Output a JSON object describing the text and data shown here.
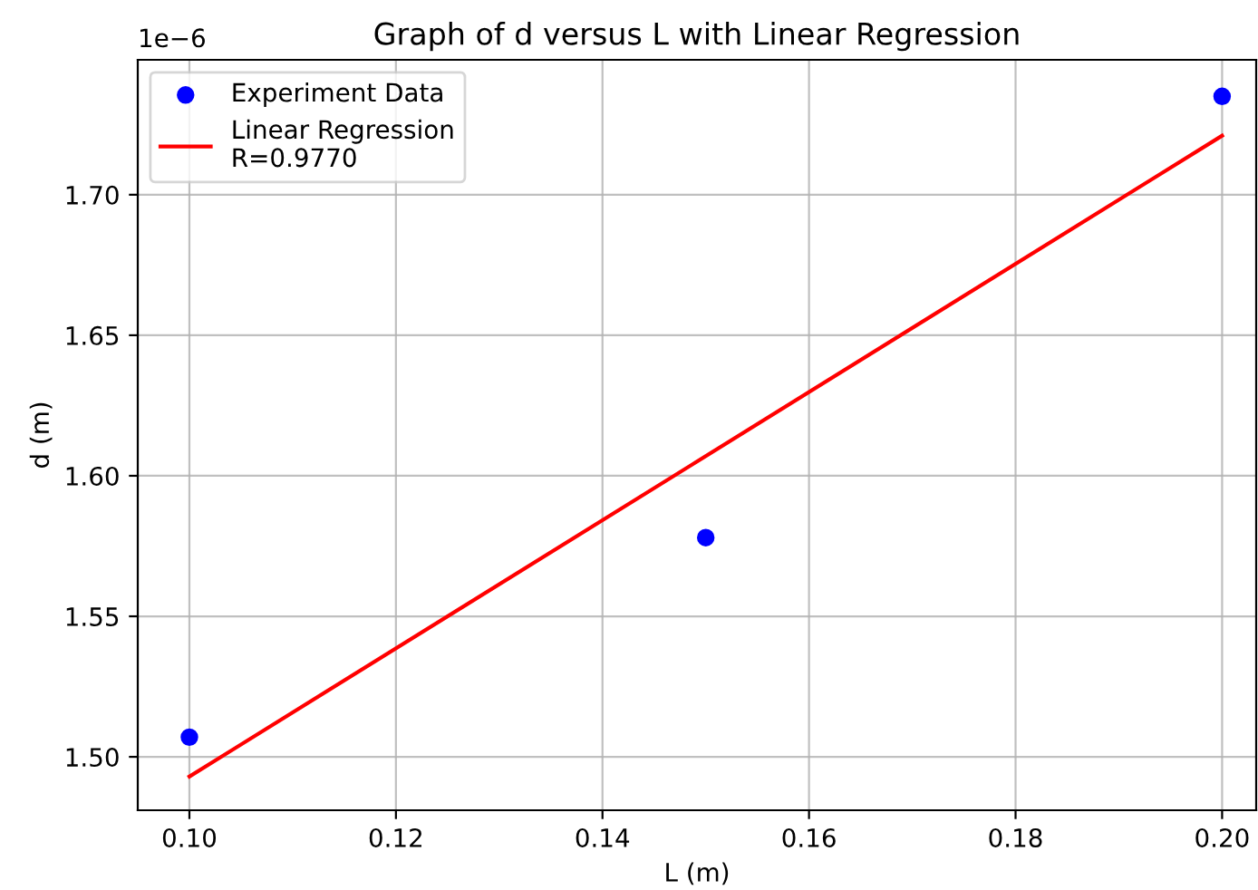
{
  "chart_data": {
    "type": "scatter",
    "title": "Graph of d versus L with Linear Regression",
    "xlabel": "L (m)",
    "ylabel": "d (m)",
    "x": [
      0.1,
      0.15,
      0.2
    ],
    "series": [
      {
        "name": "Experiment Data",
        "color": "#0000ff",
        "marker": "circle",
        "values": [
          1.507,
          1.578,
          1.735
        ]
      },
      {
        "name": "Linear Regression\nR=0.9770",
        "type": "line",
        "color": "#ff0000",
        "x": [
          0.1,
          0.2
        ],
        "values": [
          1.493,
          1.721
        ]
      }
    ],
    "annotations": [
      "1e−6"
    ],
    "xlim": [
      0.095,
      0.2033
    ],
    "xticks": [
      {
        "value": 0.1,
        "label": "0.10"
      },
      0.12,
      0.14,
      0.16,
      0.18,
      {
        "value": 0.2,
        "label": "0.20"
      }
    ],
    "ylim": [
      1.481,
      1.748
    ],
    "yticks": [
      {
        "value": 1.5,
        "label": "1.50"
      },
      1.55,
      {
        "value": 1.6,
        "label": "1.60"
      },
      1.65,
      {
        "value": 1.7,
        "label": "1.70"
      }
    ],
    "grid": true,
    "legend": "top left"
  }
}
